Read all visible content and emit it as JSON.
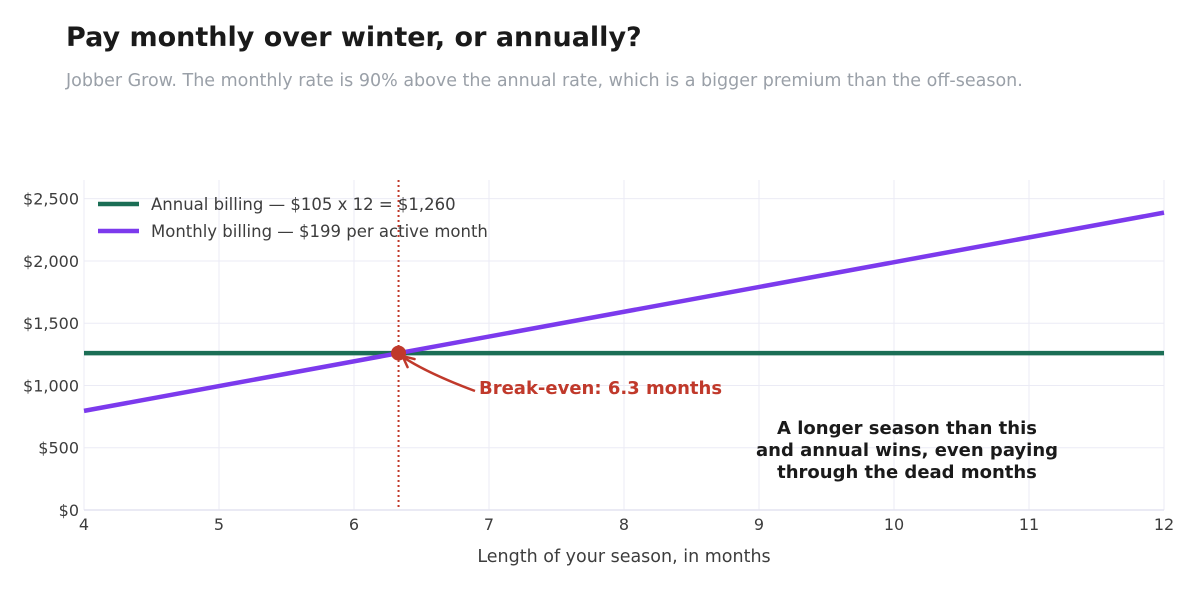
{
  "header": {
    "title": "Pay monthly over winter, or annually?",
    "subtitle": "Jobber Grow. The monthly rate is 90% above the annual rate, which is a bigger premium than the off-season."
  },
  "chart_data": {
    "type": "line",
    "xlabel": "Length of your season, in months",
    "ylabel": "",
    "xlim": [
      4,
      12
    ],
    "ylim": [
      0,
      2650
    ],
    "x_ticks": [
      4,
      5,
      6,
      7,
      8,
      9,
      10,
      11,
      12
    ],
    "y_ticks": [
      0,
      500,
      1000,
      1500,
      2000,
      2500
    ],
    "y_tick_labels": [
      "$0",
      "$500",
      "$1,000",
      "$1,500",
      "$2,000",
      "$2,500"
    ],
    "grid": true,
    "legend_position": "top-left",
    "series": [
      {
        "name": "Annual billing  —  $105 x 12 = $1,260",
        "color": "#1b6e55",
        "x": [
          4,
          12
        ],
        "y": [
          1260,
          1260
        ]
      },
      {
        "name": "Monthly billing  —  $199 per active month",
        "color": "#7c3aed",
        "x": [
          4,
          12
        ],
        "y": [
          796,
          2388
        ]
      }
    ],
    "breakeven": {
      "x": 6.33,
      "y": 1260,
      "label": "Break-even: 6.3 months",
      "color": "#c0392b"
    },
    "note_lines": [
      "A longer season than this",
      "and annual wins, even paying",
      "through the dead months"
    ]
  }
}
